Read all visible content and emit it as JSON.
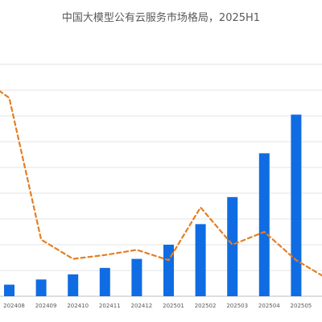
{
  "chart_data": {
    "type": "bar",
    "title": "中国大模型公有云服务市场格局，2025H1",
    "categories": [
      "202408",
      "202409",
      "202410",
      "202411",
      "202412",
      "202501",
      "202502",
      "202503",
      "202504",
      "202505"
    ],
    "series": [
      {
        "values": [
          4.5,
          6.5,
          8.5,
          11,
          14.5,
          20,
          28,
          38.5,
          55.5,
          70.5
        ],
        "color": "#0f6ce3"
      },
      {
        "values": [
          77,
          22,
          14.5,
          16,
          18,
          14,
          34.5,
          20,
          25,
          14
        ],
        "color": "#e67e22",
        "style": "dashed-line"
      }
    ],
    "ylim": [
      0,
      90
    ],
    "grid": true,
    "legend": "none"
  }
}
